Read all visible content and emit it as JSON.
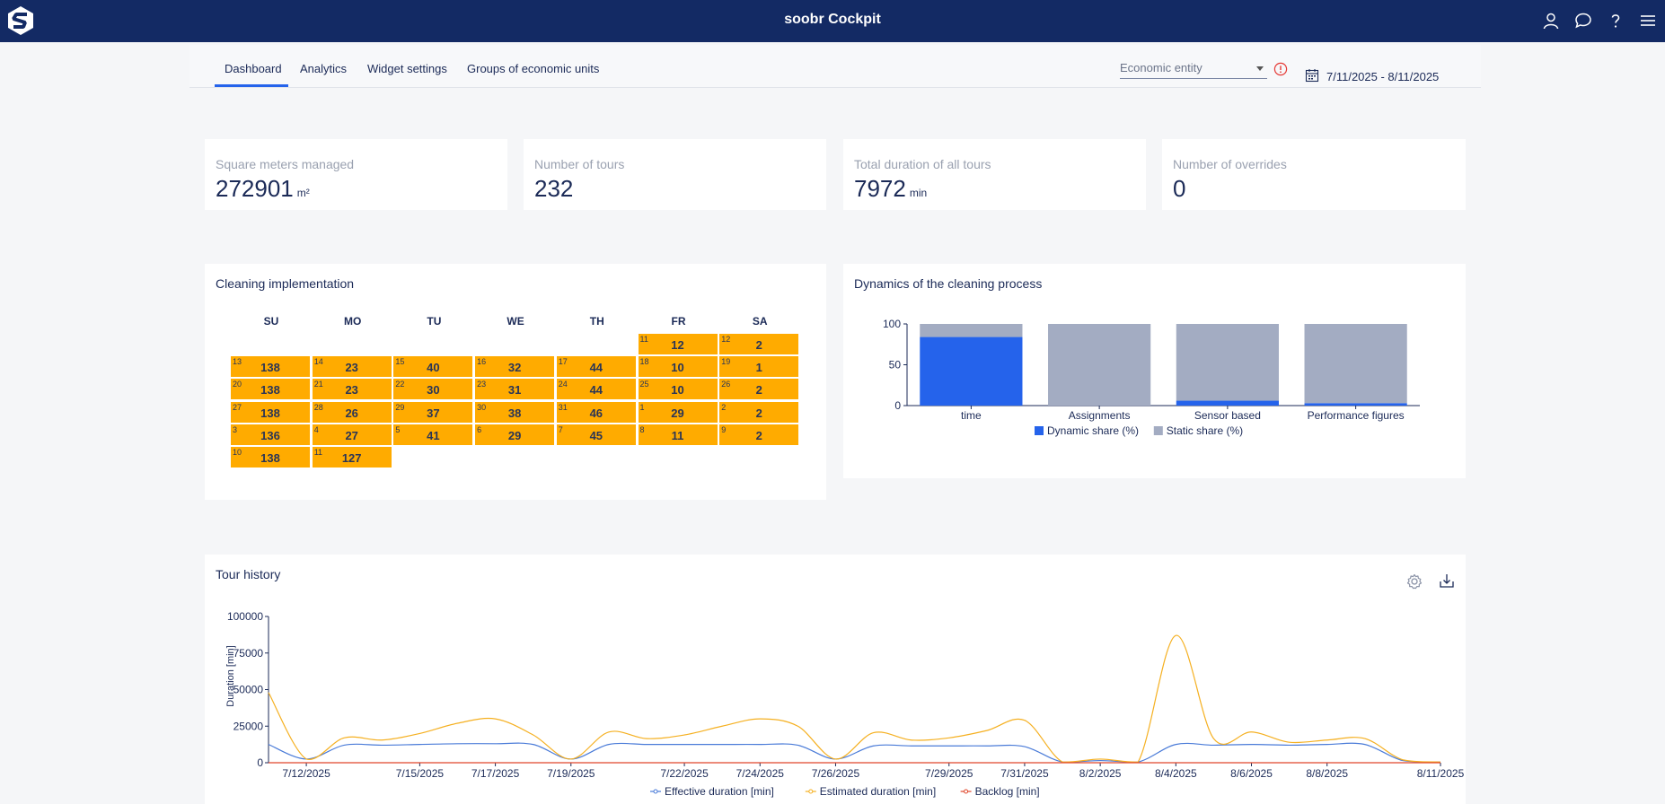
{
  "app": {
    "title": "soobr Cockpit"
  },
  "header_icons": [
    "user-icon",
    "chat-icon",
    "help-icon",
    "menu-icon"
  ],
  "tabs": [
    {
      "label": "Dashboard",
      "active": true
    },
    {
      "label": "Analytics",
      "active": false
    },
    {
      "label": "Widget settings",
      "active": false
    },
    {
      "label": "Groups of economic units",
      "active": false
    }
  ],
  "filters": {
    "entity_placeholder": "Economic entity",
    "date_range": "7/11/2025 - 8/11/2025"
  },
  "kpis": [
    {
      "label": "Square meters managed",
      "value": "272901",
      "unit": "m²"
    },
    {
      "label": "Number of tours",
      "value": "232",
      "unit": ""
    },
    {
      "label": "Total duration of all tours",
      "value": "7972",
      "unit": "min"
    },
    {
      "label": "Number of overrides",
      "value": "0",
      "unit": ""
    }
  ],
  "calendar": {
    "title": "Cleaning implementation",
    "days": [
      "SU",
      "MO",
      "TU",
      "WE",
      "TH",
      "FR",
      "SA"
    ],
    "rows": [
      [
        null,
        null,
        null,
        null,
        null,
        {
          "d": "11",
          "v": "12"
        },
        {
          "d": "12",
          "v": "2"
        }
      ],
      [
        {
          "d": "13",
          "v": "138"
        },
        {
          "d": "14",
          "v": "23"
        },
        {
          "d": "15",
          "v": "40"
        },
        {
          "d": "16",
          "v": "32"
        },
        {
          "d": "17",
          "v": "44"
        },
        {
          "d": "18",
          "v": "10"
        },
        {
          "d": "19",
          "v": "1"
        }
      ],
      [
        {
          "d": "20",
          "v": "138"
        },
        {
          "d": "21",
          "v": "23"
        },
        {
          "d": "22",
          "v": "30"
        },
        {
          "d": "23",
          "v": "31"
        },
        {
          "d": "24",
          "v": "44"
        },
        {
          "d": "25",
          "v": "10"
        },
        {
          "d": "26",
          "v": "2"
        }
      ],
      [
        {
          "d": "27",
          "v": "138"
        },
        {
          "d": "28",
          "v": "26"
        },
        {
          "d": "29",
          "v": "37"
        },
        {
          "d": "30",
          "v": "38"
        },
        {
          "d": "31",
          "v": "46"
        },
        {
          "d": "1",
          "v": "29"
        },
        {
          "d": "2",
          "v": "2"
        }
      ],
      [
        {
          "d": "3",
          "v": "136"
        },
        {
          "d": "4",
          "v": "27"
        },
        {
          "d": "5",
          "v": "41"
        },
        {
          "d": "6",
          "v": "29"
        },
        {
          "d": "7",
          "v": "45"
        },
        {
          "d": "8",
          "v": "11"
        },
        {
          "d": "9",
          "v": "2"
        }
      ],
      [
        {
          "d": "10",
          "v": "138"
        },
        {
          "d": "11",
          "v": "127"
        },
        null,
        null,
        null,
        null,
        null
      ]
    ],
    "cell_color": "#ffab00"
  },
  "dynamics": {
    "title": "Dynamics of the cleaning process"
  },
  "tour_history": {
    "title": "Tour history",
    "icons": [
      "gear-icon",
      "download-icon"
    ]
  },
  "chart_data": [
    {
      "type": "bar",
      "stacked": true,
      "title": "Dynamics of the cleaning process",
      "categories": [
        "time",
        "Assignments",
        "Sensor based",
        "Performance figures"
      ],
      "ylim": [
        0,
        100
      ],
      "yticks": [
        0,
        50,
        100
      ],
      "series": [
        {
          "name": "Dynamic share (%)",
          "color": "#2563eb",
          "values": [
            84,
            0,
            6,
            3
          ]
        },
        {
          "name": "Static share (%)",
          "color": "#a3acc2",
          "values": [
            16,
            100,
            94,
            97
          ]
        }
      ],
      "legend": "bottom"
    },
    {
      "type": "line",
      "title": "Tour history",
      "ylabel": "Duration [min]",
      "ylim": [
        0,
        100000
      ],
      "yticks": [
        0,
        25000,
        50000,
        75000,
        100000
      ],
      "x": [
        "7/11/2025",
        "7/12/2025",
        "7/13/2025",
        "7/14/2025",
        "7/15/2025",
        "7/16/2025",
        "7/17/2025",
        "7/18/2025",
        "7/19/2025",
        "7/20/2025",
        "7/21/2025",
        "7/22/2025",
        "7/23/2025",
        "7/24/2025",
        "7/25/2025",
        "7/26/2025",
        "7/27/2025",
        "7/28/2025",
        "7/29/2025",
        "7/30/2025",
        "7/31/2025",
        "8/1/2025",
        "8/2/2025",
        "8/3/2025",
        "8/4/2025",
        "8/5/2025",
        "8/6/2025",
        "8/7/2025",
        "8/8/2025",
        "8/9/2025",
        "8/10/2025",
        "8/11/2025"
      ],
      "xtick_labels": [
        "7/12/2025",
        "7/15/2025",
        "7/17/2025",
        "7/19/2025",
        "7/22/2025",
        "7/24/2025",
        "7/26/2025",
        "7/29/2025",
        "7/31/2025",
        "8/2/2025",
        "8/4/2025",
        "8/6/2025",
        "8/8/2025",
        "8/11/2025"
      ],
      "series": [
        {
          "name": "Effective duration [min]",
          "color": "#4a7bd8",
          "values": [
            12500,
            2500,
            12000,
            12000,
            12500,
            13000,
            13000,
            12500,
            2500,
            12500,
            12500,
            12500,
            12500,
            12500,
            12000,
            2500,
            11500,
            11500,
            11500,
            11500,
            11000,
            500,
            1500,
            500,
            12500,
            12000,
            12500,
            12000,
            12500,
            12500,
            1500,
            500
          ]
        },
        {
          "name": "Estimated duration [min]",
          "color": "#f5b021",
          "values": [
            48000,
            2500,
            17000,
            15500,
            20000,
            27000,
            30000,
            19000,
            2500,
            21000,
            16500,
            19000,
            25000,
            30000,
            25000,
            2500,
            20500,
            15500,
            17000,
            22000,
            29000,
            500,
            2500,
            500,
            87000,
            16500,
            21000,
            14000,
            15500,
            16500,
            2000,
            500
          ]
        },
        {
          "name": "Backlog [min]",
          "color": "#e0462a",
          "values": [
            0,
            0,
            0,
            0,
            0,
            0,
            0,
            0,
            0,
            0,
            0,
            0,
            0,
            0,
            0,
            0,
            0,
            0,
            0,
            0,
            0,
            0,
            0,
            0,
            0,
            0,
            0,
            0,
            0,
            0,
            0,
            0
          ]
        }
      ],
      "legend": "bottom"
    }
  ]
}
